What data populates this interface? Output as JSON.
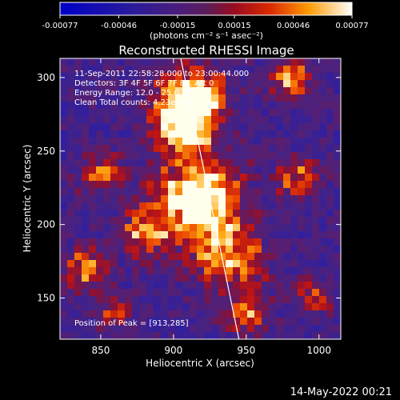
{
  "colorbar": {
    "tick_labels": [
      "-0.00077",
      "-0.00046",
      "-0.00015",
      "0.00015",
      "0.00046",
      "0.00077"
    ],
    "range": [
      -0.00077,
      0.00077
    ],
    "units": "(photons cm⁻² s⁻¹ asec⁻²)"
  },
  "chart_data": {
    "type": "heatmap",
    "title": "Reconstructed RHESSI Image",
    "xlabel": "Heliocentric X (arcsec)",
    "ylabel": "Heliocentric Y (arcsec)",
    "xlim": [
      822,
      1015
    ],
    "ylim": [
      122,
      313
    ],
    "x_ticks": [
      850,
      900,
      950,
      1000
    ],
    "y_ticks": [
      150,
      200,
      250,
      300
    ],
    "annotations": [
      "11-Sep-2011 22:58:28.000 to 23:00:44.000",
      "Detectors: 3F 4F 5F 6F 7F 8F, Att 0",
      "Energy Range: 12.0 - 25.0 keV",
      "Clean    Total counts: 4.23e+03"
    ],
    "peak_label": "Position of Peak = [913,285]",
    "peak_position": [
      913,
      285
    ],
    "limb_line": [
      [
        905,
        313
      ],
      [
        945,
        122
      ]
    ]
  },
  "footer": {
    "date": "14-May-2022 00:21"
  }
}
